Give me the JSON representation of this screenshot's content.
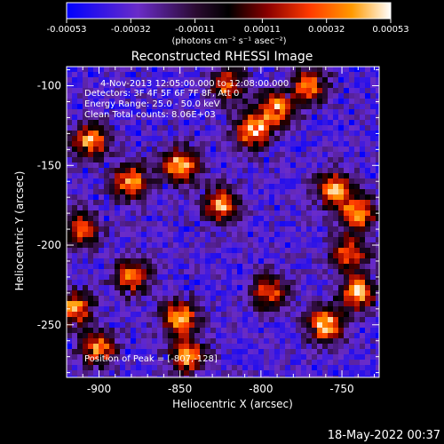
{
  "colorbar": {
    "ticks": [
      "-0.00053",
      "-0.00032",
      "-0.00011",
      "0.00011",
      "0.00032",
      "0.00053"
    ],
    "tick_values": [
      -0.00053,
      -0.00032,
      -0.00011,
      0.00011,
      0.00032,
      0.00053
    ],
    "range": [
      -0.00053,
      0.00053
    ],
    "unit_label": "(photons cm⁻² s⁻¹ asec⁻²)",
    "colors": [
      "#0000ff",
      "#6a2cc8",
      "#2a0a30",
      "#000000",
      "#8a0000",
      "#ff3a00",
      "#ff9a00",
      "#ffffff"
    ]
  },
  "chart_data": {
    "type": "heatmap",
    "title": "Reconstructed RHESSI Image",
    "xlabel": "Heliocentric X (arcsec)",
    "ylabel": "Heliocentric Y (arcsec)",
    "xlim": [
      -920,
      -727
    ],
    "ylim": [
      -283,
      -88
    ],
    "xticks": [
      "-900",
      "-850",
      "-800",
      "-750"
    ],
    "xtick_values": [
      -900,
      -850,
      -800,
      -750
    ],
    "yticks": [
      "-100",
      "-150",
      "-200",
      "-250"
    ],
    "ytick_values": [
      -100,
      -150,
      -200,
      -250
    ],
    "annotations": {
      "time_range": "4-Nov-2013 12:05:00.000 to 12:08:00.000",
      "detectors": "Detectors: 3F 4F 5F 6F 7F 8F, Att 0",
      "energy": "Energy Range: 25.0 - 50.0 keV",
      "method": "Clean    Total counts: 8.06E+03",
      "peak": "Position of Peak = [-807,-128]"
    },
    "peak_position": [
      -807,
      -128
    ]
  },
  "footer": {
    "timestamp": "18-May-2022 00:37"
  }
}
